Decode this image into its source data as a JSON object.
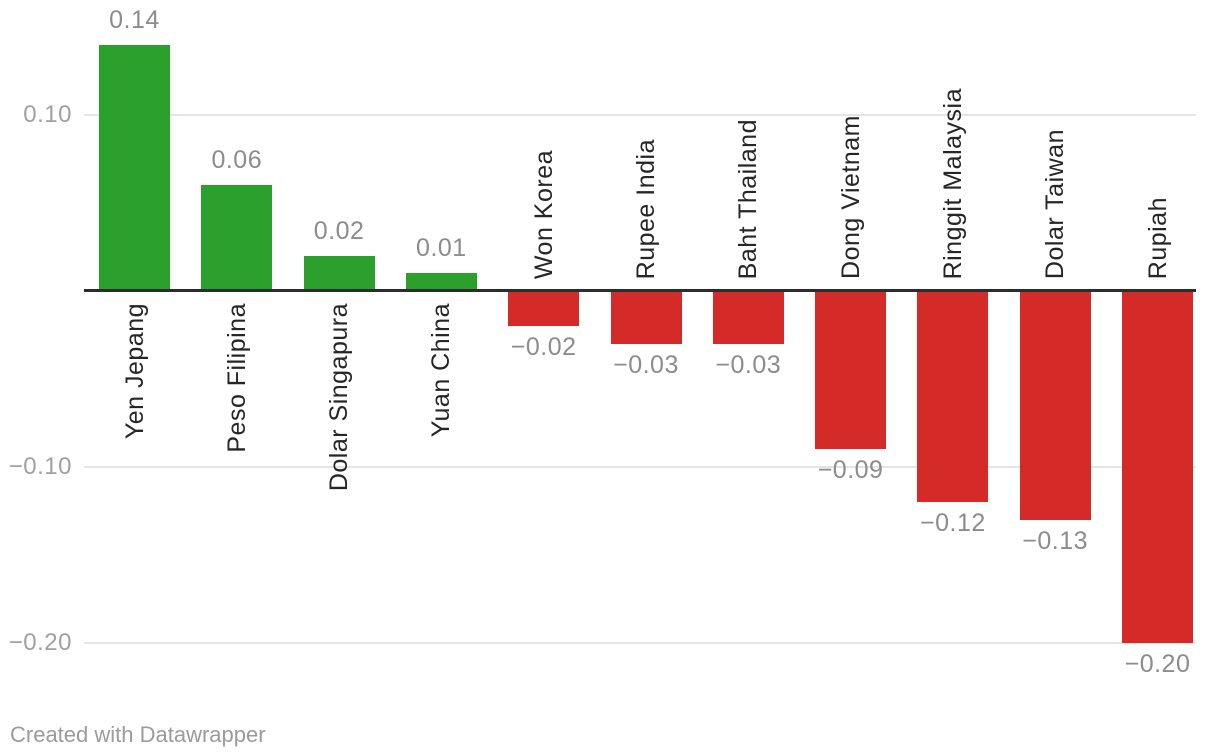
{
  "chart_data": {
    "type": "bar",
    "categories": [
      "Yen Jepang",
      "Peso Filipina",
      "Dolar Singapura",
      "Yuan China",
      "Won Korea",
      "Rupee India",
      "Baht Thailand",
      "Dong Vietnam",
      "Ringgit Malaysia",
      "Dolar Taiwan",
      "Rupiah"
    ],
    "values": [
      0.14,
      0.06,
      0.02,
      0.01,
      -0.02,
      -0.03,
      -0.03,
      -0.09,
      -0.12,
      -0.13,
      -0.2
    ],
    "value_labels": [
      "0.14",
      "0.06",
      "0.02",
      "0.01",
      "−0.02",
      "−0.03",
      "−0.03",
      "−0.09",
      "−0.12",
      "−0.13",
      "−0.20"
    ],
    "y_ticks": [
      {
        "label": "0.10",
        "value": 0.1
      },
      {
        "label": "−0.10",
        "value": -0.1
      },
      {
        "label": "−0.20",
        "value": -0.2
      }
    ],
    "ylim": [
      -0.22,
      0.165
    ],
    "grid": true,
    "legend": "none",
    "title": "",
    "xlabel": "",
    "ylabel": "",
    "colors": {
      "positive": "#2ca02c",
      "negative": "#d42a28",
      "axis_line": "#2c2c2c",
      "gridline": "#e4e4e4",
      "tick_text": "#a0a0a0",
      "value_text": "#8c8c8c",
      "category_text": "#262626"
    }
  },
  "footer": {
    "attribution": "Created with Datawrapper"
  }
}
